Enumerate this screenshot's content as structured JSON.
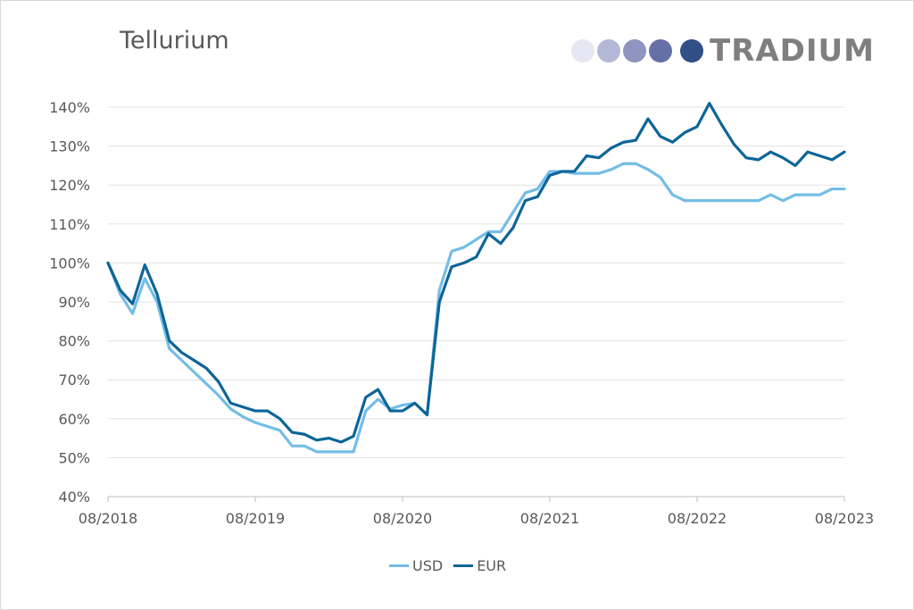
{
  "brand": {
    "name": "TRADIUM",
    "dot_colors": [
      "#e6e7f2",
      "#b4b8d6",
      "#8f95be",
      "#6670a6",
      "#2f4f86"
    ]
  },
  "chart_data": {
    "type": "line",
    "title": "Tellurium",
    "xlabel": "",
    "ylabel": "",
    "ylim": [
      40,
      140
    ],
    "yticks": [
      "40%",
      "50%",
      "60%",
      "70%",
      "80%",
      "90%",
      "100%",
      "110%",
      "120%",
      "130%",
      "140%"
    ],
    "xticks": [
      "08/2018",
      "08/2019",
      "08/2020",
      "08/2021",
      "08/2022",
      "08/2023"
    ],
    "grid": true,
    "legend_position": "bottom",
    "x": [
      "08/2018",
      "09/2018",
      "10/2018",
      "11/2018",
      "12/2018",
      "01/2019",
      "02/2019",
      "03/2019",
      "04/2019",
      "05/2019",
      "06/2019",
      "07/2019",
      "08/2019",
      "09/2019",
      "10/2019",
      "11/2019",
      "12/2019",
      "01/2020",
      "02/2020",
      "03/2020",
      "04/2020",
      "05/2020",
      "06/2020",
      "07/2020",
      "08/2020",
      "09/2020",
      "10/2020",
      "11/2020",
      "12/2020",
      "01/2021",
      "02/2021",
      "03/2021",
      "04/2021",
      "05/2021",
      "06/2021",
      "07/2021",
      "08/2021",
      "09/2021",
      "10/2021",
      "11/2021",
      "12/2021",
      "01/2022",
      "02/2022",
      "03/2022",
      "04/2022",
      "05/2022",
      "06/2022",
      "07/2022",
      "08/2022",
      "09/2022",
      "10/2022",
      "11/2022",
      "12/2022",
      "01/2023",
      "02/2023",
      "03/2023",
      "04/2023",
      "05/2023",
      "06/2023",
      "07/2023",
      "08/2023"
    ],
    "series": [
      {
        "name": "USD",
        "color": "#74bde6",
        "values": [
          100,
          92,
          87,
          96,
          90,
          78,
          75,
          72,
          69,
          66,
          62.5,
          60.5,
          59,
          58,
          57,
          53,
          53,
          51.5,
          51.5,
          51.5,
          51.5,
          62,
          65,
          62.5,
          63.5,
          64,
          61,
          93,
          103,
          104,
          106,
          108,
          108,
          113,
          118,
          119,
          123.5,
          123.5,
          123,
          123,
          123,
          124,
          125.5,
          125.5,
          124,
          122,
          117.5,
          116,
          116,
          116,
          116,
          116,
          116,
          116,
          117.5,
          116,
          117.5,
          117.5,
          117.5,
          119,
          119
        ]
      },
      {
        "name": "EUR",
        "color": "#0d6598",
        "values": [
          100,
          93,
          89.5,
          99.5,
          92,
          80,
          77,
          75,
          73,
          69.5,
          64,
          63,
          62,
          62,
          60,
          56.5,
          56,
          54.5,
          55,
          54,
          55.5,
          65.5,
          67.5,
          62,
          62,
          64,
          61,
          90,
          99,
          100,
          101.5,
          107.5,
          105,
          109,
          116,
          117,
          122.5,
          123.5,
          123.5,
          127.5,
          127,
          129.5,
          131,
          131.5,
          137,
          132.5,
          131,
          133.5,
          135,
          141,
          135.5,
          130.5,
          127,
          126.5,
          128.5,
          127,
          125,
          128.5,
          127.5,
          126.5,
          128.5
        ]
      }
    ]
  }
}
